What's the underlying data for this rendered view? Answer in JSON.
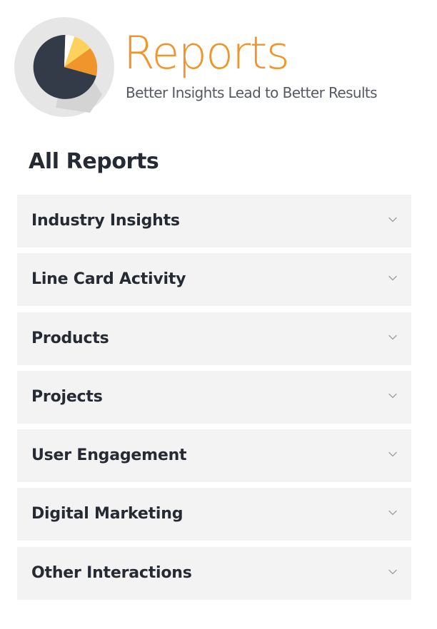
{
  "header": {
    "logo_icon": "pie-chart-icon",
    "title": "Reports",
    "tagline": "Better Insights Lead to Better Results"
  },
  "section": {
    "title": "All Reports"
  },
  "reports": [
    {
      "label": "Industry Insights",
      "icon": "chevron-down-icon"
    },
    {
      "label": "Line Card Activity",
      "icon": "chevron-down-icon"
    },
    {
      "label": "Products",
      "icon": "chevron-down-icon"
    },
    {
      "label": "Projects",
      "icon": "chevron-down-icon"
    },
    {
      "label": "User Engagement",
      "icon": "chevron-down-icon"
    },
    {
      "label": "Digital Marketing",
      "icon": "chevron-down-icon"
    },
    {
      "label": "Other Interactions",
      "icon": "chevron-down-icon"
    }
  ],
  "colors": {
    "brand_orange": "#f0952b",
    "pie_dark": "#333a48",
    "pie_yellow": "#fdd25c",
    "logo_circle": "#e6e6e6",
    "item_background": "#f3f3f3",
    "text_dark": "#262b33",
    "tagline": "#555a60",
    "chevron": "#9a9ea4"
  }
}
